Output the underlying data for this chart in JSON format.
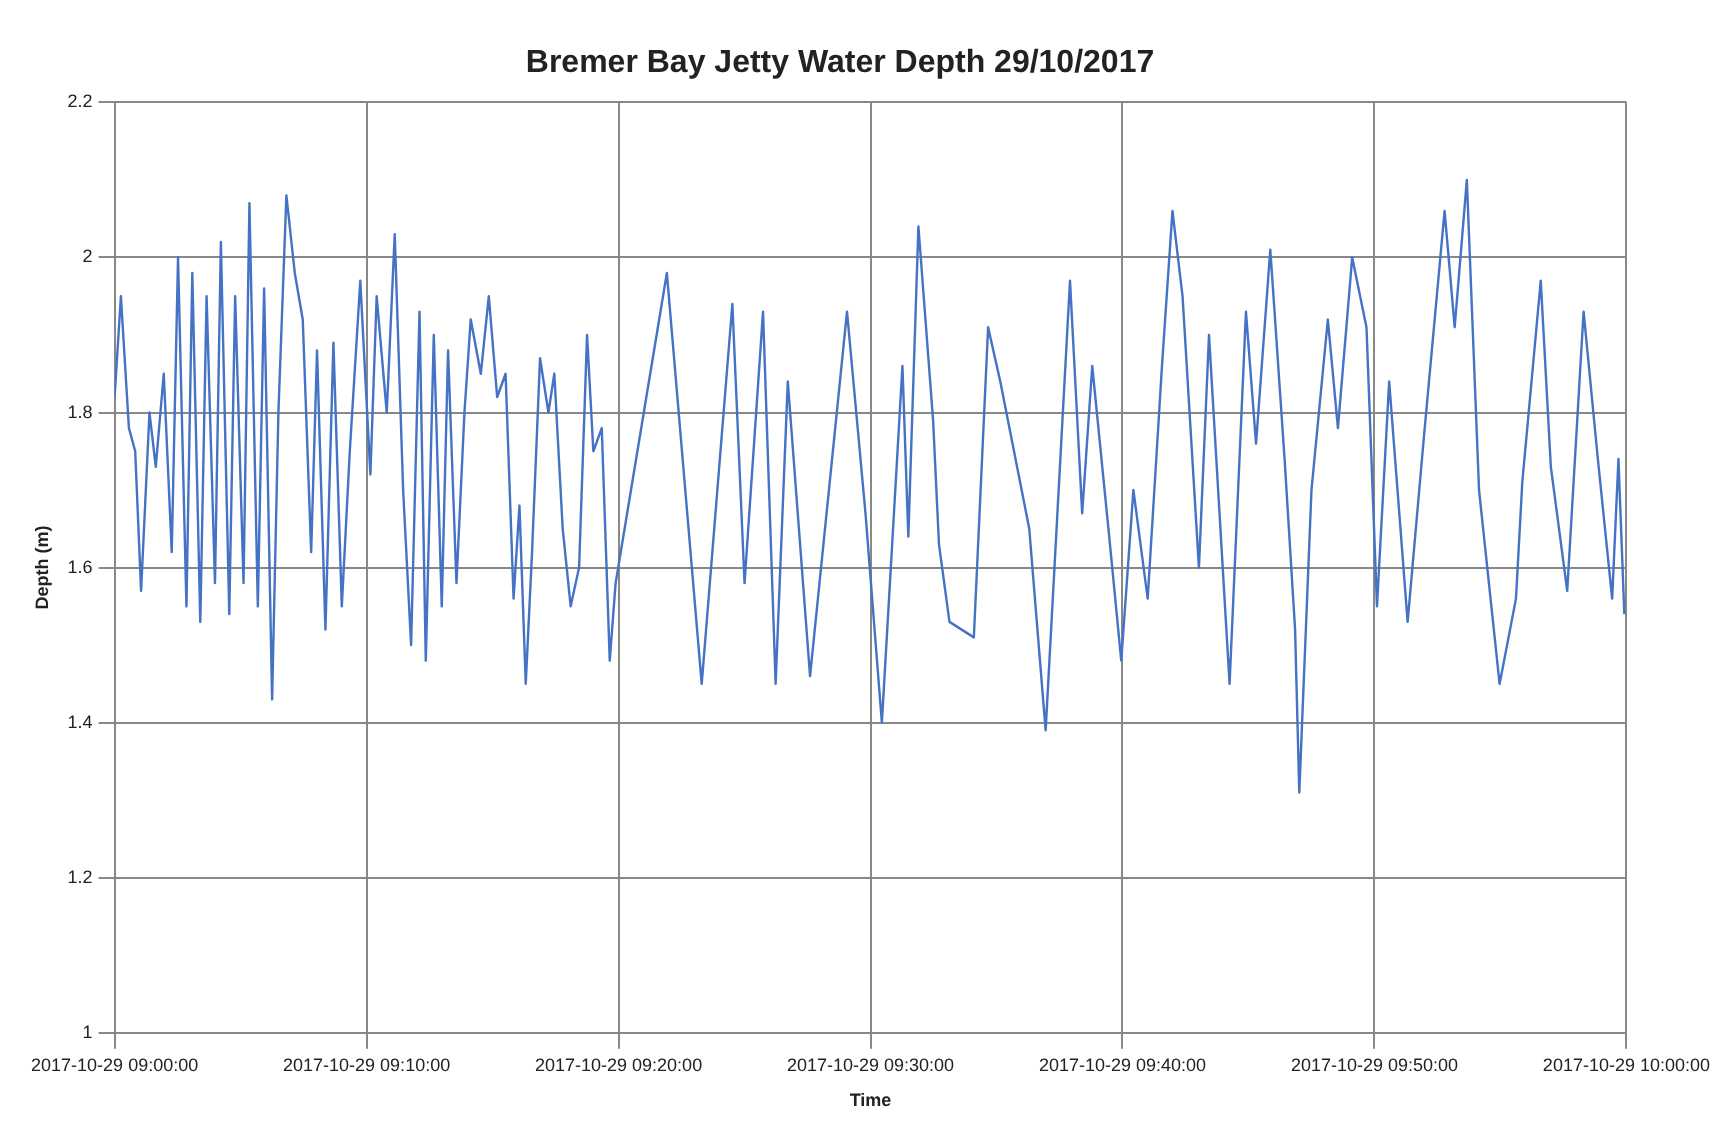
{
  "chart_data": {
    "type": "line",
    "title": "Bremer Bay Jetty Water Depth 29/10/2017",
    "xlabel": "Time",
    "ylabel": "Depth (m)",
    "x": [
      "2017-10-29T09:00:00",
      "2017-10-29T09:00:15",
      "2017-10-29T09:00:34",
      "2017-10-29T09:00:49",
      "2017-10-29T09:01:03",
      "2017-10-29T09:01:23",
      "2017-10-29T09:01:38",
      "2017-10-29T09:01:57",
      "2017-10-29T09:02:16",
      "2017-10-29T09:02:31",
      "2017-10-29T09:02:51",
      "2017-10-29T09:03:05",
      "2017-10-29T09:03:24",
      "2017-10-29T09:03:39",
      "2017-10-29T09:03:59",
      "2017-10-29T09:04:13",
      "2017-10-29T09:04:33",
      "2017-10-29T09:04:47",
      "2017-10-29T09:05:07",
      "2017-10-29T09:05:21",
      "2017-10-29T09:05:41",
      "2017-10-29T09:05:56",
      "2017-10-29T09:06:15",
      "2017-10-29T09:06:30",
      "2017-10-29T09:06:49",
      "2017-10-29T09:07:09",
      "2017-10-29T09:07:28",
      "2017-10-29T09:07:48",
      "2017-10-29T09:08:02",
      "2017-10-29T09:08:22",
      "2017-10-29T09:08:41",
      "2017-10-29T09:09:01",
      "2017-10-29T09:09:20",
      "2017-10-29T09:09:45",
      "2017-10-29T09:10:09",
      "2017-10-29T09:10:24",
      "2017-10-29T09:10:48",
      "2017-10-29T09:11:07",
      "2017-10-29T09:11:27",
      "2017-10-29T09:11:46",
      "2017-10-29T09:12:06",
      "2017-10-29T09:12:21",
      "2017-10-29T09:12:40",
      "2017-10-29T09:12:59",
      "2017-10-29T09:13:14",
      "2017-10-29T09:13:34",
      "2017-10-29T09:13:53",
      "2017-10-29T09:14:08",
      "2017-10-29T09:14:32",
      "2017-10-29T09:14:51",
      "2017-10-29T09:15:11",
      "2017-10-29T09:15:31",
      "2017-10-29T09:15:50",
      "2017-10-29T09:16:04",
      "2017-10-29T09:16:19",
      "2017-10-29T09:16:34",
      "2017-10-29T09:16:53",
      "2017-10-29T09:17:13",
      "2017-10-29T09:17:27",
      "2017-10-29T09:17:47",
      "2017-10-29T09:18:06",
      "2017-10-29T09:18:26",
      "2017-10-29T09:18:45",
      "2017-10-29T09:19:00",
      "2017-10-29T09:19:20",
      "2017-10-29T09:19:39",
      "2017-10-29T09:19:53",
      "2017-10-29T09:21:55",
      "2017-10-29T09:23:18",
      "2017-10-29T09:24:31",
      "2017-10-29T09:25:00",
      "2017-10-29T09:25:44",
      "2017-10-29T09:26:14",
      "2017-10-29T09:26:43",
      "2017-10-29T09:27:36",
      "2017-10-29T09:29:04",
      "2017-10-29T09:29:48",
      "2017-10-29T09:30:27",
      "2017-10-29T09:31:16",
      "2017-10-29T09:31:30",
      "2017-10-29T09:31:54",
      "2017-10-29T09:32:29",
      "2017-10-29T09:32:43",
      "2017-10-29T09:33:08",
      "2017-10-29T09:34:06",
      "2017-10-29T09:34:40",
      "2017-10-29T09:35:09",
      "2017-10-29T09:36:18",
      "2017-10-29T09:36:57",
      "2017-10-29T09:37:21",
      "2017-10-29T09:37:55",
      "2017-10-29T09:38:24",
      "2017-10-29T09:38:48",
      "2017-10-29T09:39:32",
      "2017-10-29T09:39:57",
      "2017-10-29T09:40:26",
      "2017-10-29T09:41:00",
      "2017-10-29T09:41:34",
      "2017-10-29T09:41:59",
      "2017-10-29T09:42:23",
      "2017-10-29T09:43:02",
      "2017-10-29T09:43:26",
      "2017-10-29T09:44:15",
      "2017-10-29T09:44:54",
      "2017-10-29T09:45:18",
      "2017-10-29T09:45:52",
      "2017-10-29T09:46:26",
      "2017-10-29T09:46:51",
      "2017-10-29T09:47:01",
      "2017-10-29T09:47:30",
      "2017-10-29T09:48:09",
      "2017-10-29T09:48:33",
      "2017-10-29T09:49:07",
      "2017-10-29T09:49:41",
      "2017-10-29T09:50:06",
      "2017-10-29T09:50:35",
      "2017-10-29T09:51:19",
      "2017-10-29T09:51:58",
      "2017-10-29T09:52:47",
      "2017-10-29T09:53:11",
      "2017-10-29T09:53:40",
      "2017-10-29T09:54:09",
      "2017-10-29T09:54:58",
      "2017-10-29T09:55:37",
      "2017-10-29T09:55:52",
      "2017-10-29T09:56:36",
      "2017-10-29T09:57:00",
      "2017-10-29T09:57:39",
      "2017-10-29T09:58:18",
      "2017-10-29T09:58:52",
      "2017-10-29T09:59:26",
      "2017-10-29T09:59:41",
      "2017-10-29T09:59:55"
    ],
    "series": [
      {
        "color": "#4472c4",
        "values": [
          1.82,
          1.95,
          1.78,
          1.75,
          1.57,
          1.8,
          1.73,
          1.85,
          1.62,
          2.0,
          1.55,
          1.98,
          1.53,
          1.95,
          1.58,
          2.02,
          1.54,
          1.95,
          1.58,
          2.07,
          1.55,
          1.96,
          1.43,
          1.8,
          2.08,
          1.98,
          1.92,
          1.62,
          1.88,
          1.52,
          1.89,
          1.55,
          1.75,
          1.97,
          1.72,
          1.95,
          1.8,
          2.03,
          1.7,
          1.5,
          1.93,
          1.48,
          1.9,
          1.55,
          1.88,
          1.58,
          1.8,
          1.92,
          1.85,
          1.95,
          1.82,
          1.85,
          1.56,
          1.68,
          1.45,
          1.62,
          1.87,
          1.8,
          1.85,
          1.65,
          1.55,
          1.6,
          1.9,
          1.75,
          1.78,
          1.48,
          1.58,
          1.98,
          1.45,
          1.94,
          1.58,
          1.93,
          1.45,
          1.84,
          1.46,
          1.93,
          1.67,
          1.4,
          1.86,
          1.64,
          2.04,
          1.79,
          1.63,
          1.53,
          1.51,
          1.91,
          1.84,
          1.65,
          1.39,
          1.63,
          1.97,
          1.67,
          1.86,
          1.62,
          1.48,
          1.7,
          1.56,
          1.86,
          2.06,
          1.95,
          1.6,
          1.9,
          1.45,
          1.93,
          1.76,
          2.01,
          1.74,
          1.52,
          1.31,
          1.7,
          1.92,
          1.78,
          2.0,
          1.91,
          1.55,
          1.84,
          1.53,
          1.77,
          2.06,
          1.91,
          2.1,
          1.7,
          1.45,
          1.56,
          1.71,
          1.97,
          1.73,
          1.57,
          1.93,
          1.74,
          1.56,
          1.74,
          1.54
        ]
      }
    ],
    "xlim": [
      "2017-10-29T09:00",
      "2017-10-29T10:00"
    ],
    "xticks": [
      {
        "value": "2017-10-29T09:00",
        "label": "2017-10-29 09:00:00"
      },
      {
        "value": "2017-10-29T09:10",
        "label": "2017-10-29 09:10:00"
      },
      {
        "value": "2017-10-29T09:20",
        "label": "2017-10-29 09:20:00"
      },
      {
        "value": "2017-10-29T09:30",
        "label": "2017-10-29 09:30:00"
      },
      {
        "value": "2017-10-29T09:40",
        "label": "2017-10-29 09:40:00"
      },
      {
        "value": "2017-10-29T09:50",
        "label": "2017-10-29 09:50:00"
      },
      {
        "value": "2017-10-29T10:00",
        "label": "2017-10-29 10:00:00"
      }
    ],
    "ylim": [
      1,
      2.2
    ],
    "yticks": [
      1,
      1.2,
      1.4,
      1.6,
      1.8,
      2,
      2.2
    ],
    "grid": true,
    "legend": false,
    "marker": "none",
    "line_style": "solid"
  }
}
